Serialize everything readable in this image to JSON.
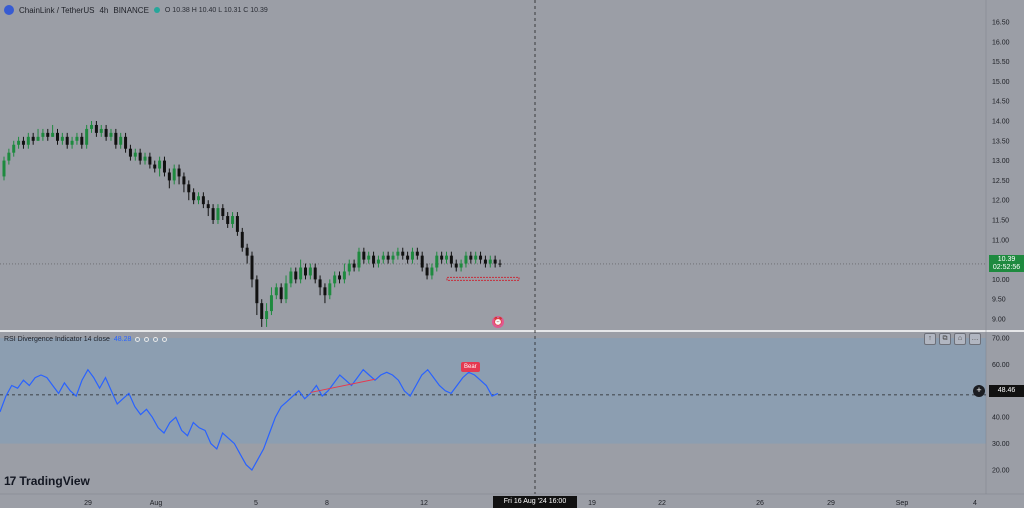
{
  "header": {
    "symbol": "ChainLink / TetherUS",
    "interval": "4h",
    "exchange": "BINANCE",
    "ohlc": "O 10.38  H 10.40  L 10.31  C 10.39"
  },
  "rsi_header": {
    "name": "RSI Divergence Indicator 14 close",
    "value": "48.28"
  },
  "price_badge": {
    "price": "10.39",
    "countdown": "02:52:56"
  },
  "rsi_badge": {
    "value": "48.46"
  },
  "crosshair_time": "Fri 16 Aug '24   16:00",
  "bear_label": "Bear",
  "brand": "TradingView",
  "pane_buttons": [
    "↑",
    "⧉",
    "⌂",
    "…"
  ],
  "colors": {
    "background": "#9b9ea6",
    "rsi_band": "#8b9db2",
    "up": "#1e8a3f",
    "down": "#111111",
    "rsi_line": "#2962ff",
    "bear": "#e53950"
  },
  "chart_data": [
    {
      "type": "candlestick",
      "title": "ChainLink / TetherUS",
      "ylim": [
        8.8,
        16.9
      ],
      "yticks": [
        "16.50",
        "16.00",
        "15.50",
        "15.00",
        "14.50",
        "14.00",
        "13.50",
        "13.00",
        "12.50",
        "12.00",
        "11.50",
        "11.00",
        "10.50",
        "10.00",
        "9.50",
        "9.00"
      ],
      "xticks": [
        "29",
        "Aug",
        "5",
        "8",
        "12",
        "Fri 16 Aug '24",
        "19",
        "22",
        "26",
        "29",
        "Sep",
        "4"
      ],
      "candles": [
        [
          12.6,
          13.0,
          13.1,
          12.5
        ],
        [
          13.0,
          13.2,
          13.3,
          12.9
        ],
        [
          13.2,
          13.4,
          13.5,
          13.1
        ],
        [
          13.4,
          13.5,
          13.6,
          13.3
        ],
        [
          13.5,
          13.4,
          13.6,
          13.3
        ],
        [
          13.4,
          13.6,
          13.7,
          13.3
        ],
        [
          13.6,
          13.5,
          13.7,
          13.4
        ],
        [
          13.5,
          13.6,
          13.8,
          13.5
        ],
        [
          13.6,
          13.7,
          13.8,
          13.5
        ],
        [
          13.7,
          13.6,
          13.8,
          13.5
        ],
        [
          13.6,
          13.7,
          13.9,
          13.6
        ],
        [
          13.7,
          13.5,
          13.8,
          13.4
        ],
        [
          13.5,
          13.6,
          13.7,
          13.4
        ],
        [
          13.6,
          13.4,
          13.7,
          13.3
        ],
        [
          13.4,
          13.5,
          13.6,
          13.3
        ],
        [
          13.5,
          13.6,
          13.7,
          13.4
        ],
        [
          13.6,
          13.4,
          13.7,
          13.3
        ],
        [
          13.4,
          13.8,
          13.9,
          13.3
        ],
        [
          13.8,
          13.9,
          14.0,
          13.7
        ],
        [
          13.9,
          13.7,
          14.0,
          13.6
        ],
        [
          13.7,
          13.8,
          13.9,
          13.6
        ],
        [
          13.8,
          13.6,
          13.9,
          13.5
        ],
        [
          13.6,
          13.7,
          13.8,
          13.5
        ],
        [
          13.7,
          13.4,
          13.8,
          13.3
        ],
        [
          13.4,
          13.6,
          13.7,
          13.3
        ],
        [
          13.6,
          13.3,
          13.7,
          13.2
        ],
        [
          13.3,
          13.1,
          13.4,
          13.0
        ],
        [
          13.1,
          13.2,
          13.3,
          13.0
        ],
        [
          13.2,
          13.0,
          13.3,
          12.9
        ],
        [
          13.0,
          13.1,
          13.2,
          12.9
        ],
        [
          13.1,
          12.9,
          13.2,
          12.8
        ],
        [
          12.9,
          12.8,
          13.0,
          12.7
        ],
        [
          12.8,
          13.0,
          13.1,
          12.6
        ],
        [
          13.0,
          12.7,
          13.1,
          12.6
        ],
        [
          12.7,
          12.5,
          12.8,
          12.3
        ],
        [
          12.5,
          12.8,
          12.9,
          12.4
        ],
        [
          12.8,
          12.6,
          12.9,
          12.4
        ],
        [
          12.6,
          12.4,
          12.7,
          12.2
        ],
        [
          12.4,
          12.2,
          12.5,
          12.0
        ],
        [
          12.2,
          12.0,
          12.3,
          11.9
        ],
        [
          12.0,
          12.1,
          12.2,
          11.9
        ],
        [
          12.1,
          11.9,
          12.2,
          11.8
        ],
        [
          11.9,
          11.8,
          12.0,
          11.6
        ],
        [
          11.8,
          11.5,
          11.9,
          11.4
        ],
        [
          11.5,
          11.8,
          11.9,
          11.4
        ],
        [
          11.8,
          11.6,
          11.9,
          11.5
        ],
        [
          11.6,
          11.4,
          11.7,
          11.3
        ],
        [
          11.4,
          11.6,
          11.7,
          11.3
        ],
        [
          11.6,
          11.2,
          11.7,
          11.1
        ],
        [
          11.2,
          10.8,
          11.3,
          10.7
        ],
        [
          10.8,
          10.6,
          10.9,
          10.4
        ],
        [
          10.6,
          10.0,
          10.7,
          9.8
        ],
        [
          10.0,
          9.4,
          10.1,
          9.1
        ],
        [
          9.4,
          9.0,
          9.5,
          8.8
        ],
        [
          9.0,
          9.2,
          9.4,
          8.8
        ],
        [
          9.2,
          9.6,
          9.8,
          9.1
        ],
        [
          9.6,
          9.8,
          9.9,
          9.5
        ],
        [
          9.8,
          9.5,
          9.9,
          9.4
        ],
        [
          9.5,
          9.9,
          10.1,
          9.4
        ],
        [
          9.9,
          10.2,
          10.3,
          9.8
        ],
        [
          10.2,
          10.0,
          10.3,
          9.9
        ],
        [
          10.0,
          10.3,
          10.5,
          9.9
        ],
        [
          10.3,
          10.1,
          10.4,
          10.0
        ],
        [
          10.1,
          10.3,
          10.4,
          10.0
        ],
        [
          10.3,
          10.0,
          10.4,
          9.9
        ],
        [
          10.0,
          9.8,
          10.1,
          9.6
        ],
        [
          9.8,
          9.6,
          9.9,
          9.4
        ],
        [
          9.6,
          9.9,
          10.0,
          9.5
        ],
        [
          9.9,
          10.1,
          10.2,
          9.8
        ],
        [
          10.1,
          10.0,
          10.2,
          9.9
        ],
        [
          10.0,
          10.2,
          10.4,
          9.9
        ],
        [
          10.2,
          10.4,
          10.5,
          10.1
        ],
        [
          10.4,
          10.3,
          10.5,
          10.2
        ],
        [
          10.3,
          10.7,
          10.8,
          10.2
        ],
        [
          10.7,
          10.5,
          10.8,
          10.4
        ],
        [
          10.5,
          10.6,
          10.7,
          10.4
        ],
        [
          10.6,
          10.4,
          10.7,
          10.3
        ],
        [
          10.4,
          10.5,
          10.6,
          10.3
        ],
        [
          10.5,
          10.6,
          10.7,
          10.4
        ],
        [
          10.6,
          10.5,
          10.7,
          10.4
        ],
        [
          10.5,
          10.6,
          10.7,
          10.4
        ],
        [
          10.6,
          10.7,
          10.8,
          10.5
        ],
        [
          10.7,
          10.6,
          10.8,
          10.5
        ],
        [
          10.6,
          10.5,
          10.7,
          10.4
        ],
        [
          10.5,
          10.7,
          10.8,
          10.4
        ],
        [
          10.7,
          10.6,
          10.8,
          10.5
        ],
        [
          10.6,
          10.3,
          10.7,
          10.2
        ],
        [
          10.3,
          10.1,
          10.4,
          10.0
        ],
        [
          10.1,
          10.3,
          10.4,
          10.0
        ],
        [
          10.3,
          10.6,
          10.7,
          10.2
        ],
        [
          10.6,
          10.5,
          10.7,
          10.4
        ],
        [
          10.5,
          10.6,
          10.7,
          10.4
        ],
        [
          10.6,
          10.4,
          10.7,
          10.3
        ],
        [
          10.4,
          10.3,
          10.5,
          10.2
        ],
        [
          10.3,
          10.4,
          10.5,
          10.2
        ],
        [
          10.4,
          10.6,
          10.7,
          10.3
        ],
        [
          10.6,
          10.5,
          10.7,
          10.4
        ],
        [
          10.5,
          10.6,
          10.7,
          10.4
        ],
        [
          10.6,
          10.5,
          10.7,
          10.4
        ],
        [
          10.5,
          10.4,
          10.6,
          10.3
        ],
        [
          10.4,
          10.5,
          10.6,
          10.3
        ],
        [
          10.5,
          10.4,
          10.6,
          10.3
        ],
        [
          10.4,
          10.39,
          10.5,
          10.31
        ]
      ]
    },
    {
      "type": "line",
      "title": "RSI Divergence Indicator 14 close",
      "ylim": [
        15,
        70
      ],
      "yticks": [
        "70.00",
        "60.00",
        "50.00",
        "40.00",
        "30.00",
        "20.00"
      ],
      "band": [
        30,
        70
      ],
      "midline": 48.46,
      "values": [
        42,
        48,
        52,
        51,
        54,
        52,
        55,
        56,
        55,
        52,
        49,
        53,
        50,
        48,
        54,
        58,
        55,
        51,
        55,
        50,
        45,
        47,
        49,
        44,
        41,
        43,
        40,
        36,
        34,
        38,
        40,
        35,
        33,
        38,
        36,
        35,
        30,
        28,
        34,
        32,
        30,
        26,
        22,
        20,
        24,
        28,
        34,
        40,
        44,
        46,
        48,
        50,
        47,
        49,
        52,
        48,
        50,
        53,
        56,
        54,
        52,
        55,
        58,
        56,
        54,
        56,
        57,
        56,
        54,
        50,
        48,
        52,
        56,
        58,
        55,
        52,
        50,
        49,
        52,
        55,
        57,
        56,
        54,
        52,
        48,
        49
      ],
      "bear_segment": [
        0.62,
        0.75
      ]
    }
  ]
}
